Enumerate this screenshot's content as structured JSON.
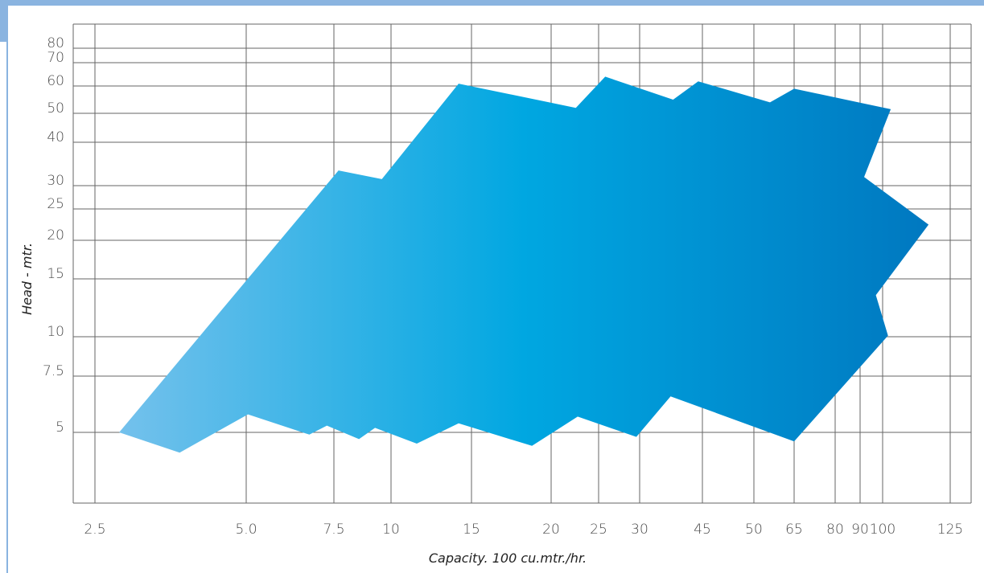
{
  "colors": {
    "frame": "#8ab4e0",
    "grid": "#666666",
    "gradient_start": "#74c1ec",
    "gradient_mid": "#00a7e1",
    "gradient_end": "#0078c0"
  },
  "chart_data": {
    "type": "area",
    "title": "",
    "xlabel": "Capacity. 100 cu.mtr./hr.",
    "ylabel": "Head - mtr.",
    "x_ticks": [
      "2.5",
      "5.0",
      "7.5",
      "10",
      "15",
      "20",
      "25",
      "30",
      "45",
      "50",
      "65",
      "80",
      "90",
      "100",
      "125"
    ],
    "y_ticks": [
      "80",
      "70",
      "60",
      "50",
      "40",
      "30",
      "25",
      "20",
      "15",
      "10",
      "7.5",
      "5"
    ],
    "grid": true,
    "legend": "none",
    "coverage_region": [
      [
        2.9,
        5.0
      ],
      [
        3.9,
        4.1
      ],
      [
        5.05,
        5.8
      ],
      [
        6.8,
        4.9
      ],
      [
        7.3,
        5.3
      ],
      [
        8.6,
        4.7
      ],
      [
        9.3,
        5.2
      ],
      [
        11.6,
        4.5
      ],
      [
        14.2,
        5.4
      ],
      [
        18.8,
        4.4
      ],
      [
        22.8,
        5.7
      ],
      [
        29.6,
        4.8
      ],
      [
        37.4,
        6.6
      ],
      [
        65,
        4.6
      ],
      [
        102,
        10.1
      ],
      [
        97,
        13.6
      ],
      [
        117,
        22.5
      ],
      [
        91.8,
        32
      ],
      [
        103,
        51.5
      ],
      [
        65,
        59
      ],
      [
        56,
        54
      ],
      [
        44,
        62
      ],
      [
        38,
        55
      ],
      [
        25.8,
        64
      ],
      [
        22.6,
        52
      ],
      [
        14.2,
        61
      ],
      [
        9.6,
        31.5
      ],
      [
        7.7,
        33.5
      ]
    ]
  }
}
